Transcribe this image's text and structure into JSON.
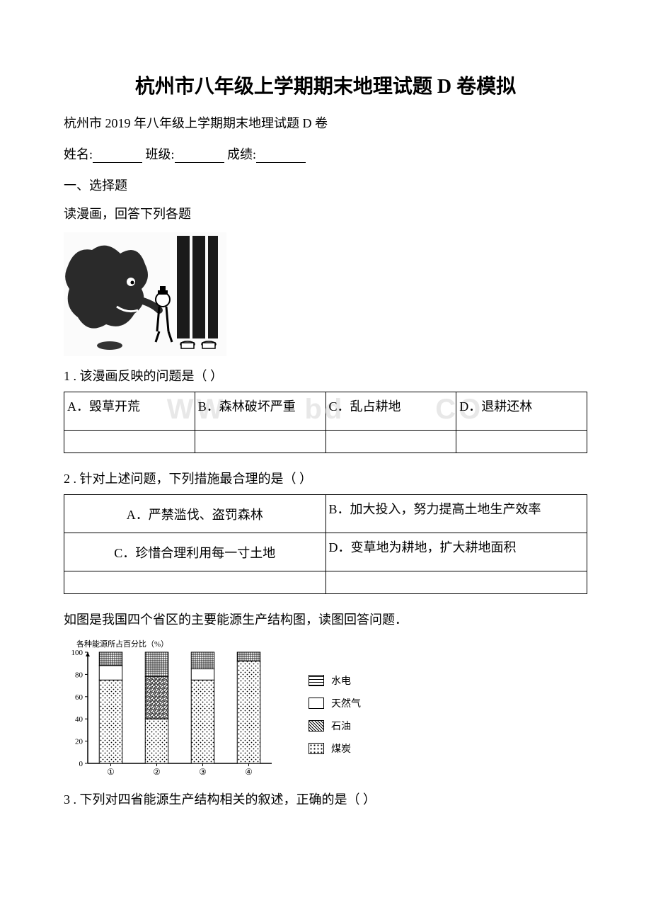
{
  "title": "杭州市八年级上学期期末地理试题 D 卷模拟",
  "subtitle": "杭州市 2019 年八年级上学期期末地理试题 D 卷",
  "form": {
    "name_label": "姓名:",
    "class_label": "班级:",
    "score_label": "成绩:"
  },
  "section1": "一、选择题",
  "instruction1": "读漫画，回答下列各题",
  "q1": {
    "text": "1 . 该漫画反映的问题是（  ）",
    "options": {
      "a": "A．毁草开荒",
      "b": "B．森林破坏严重",
      "c": "C．乱占耕地",
      "d": "D．退耕还林"
    }
  },
  "q2": {
    "text": "2 . 针对上述问题，下列措施最合理的是（  ）",
    "options": {
      "a": "A．严禁滥伐、盗罚森林",
      "b": "B．加大投入，努力提高土地生产效率",
      "c": "C．珍惜合理利用每一寸土地",
      "d": "D．变草地为耕地，扩大耕地面积"
    }
  },
  "instruction2": "如图是我国四个省区的主要能源生产结构图，读图回答问题．",
  "chart": {
    "title": "各种能源所占百分比（%）",
    "y_max": 100,
    "y_ticks": [
      0,
      20,
      40,
      60,
      80,
      100
    ],
    "x_labels": [
      "①",
      "②",
      "③",
      "④"
    ],
    "bars": [
      {
        "hydro": 12,
        "gas": 13,
        "oil": 0,
        "coal": 75
      },
      {
        "hydro": 22,
        "gas": 0,
        "oil": 38,
        "coal": 40
      },
      {
        "hydro": 15,
        "gas": 10,
        "oil": 0,
        "coal": 75
      },
      {
        "hydro": 8,
        "gas": 0,
        "oil": 0,
        "coal": 92
      }
    ],
    "legend": {
      "hydro": "水电",
      "gas": "天然气",
      "oil": "石油",
      "coal": "煤炭"
    },
    "colors": {
      "axis": "#000000",
      "border": "#000000"
    }
  },
  "q3": {
    "text": "3 . 下列对四省能源生产结构相关的叙述，正确的是（  ）"
  },
  "watermark": "WWW. docx .com"
}
